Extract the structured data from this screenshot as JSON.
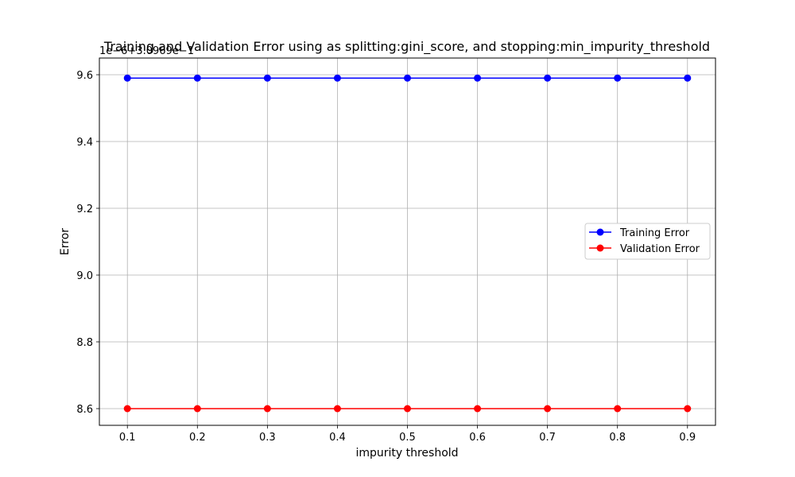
{
  "chart_data": {
    "type": "line",
    "title": "Training and Validation Error using as splitting:gini_score, and stopping:min_impurity_threshold",
    "xlabel": "impurity threshold",
    "ylabel": "Error",
    "offset_label": "1e−6+3.0969e−1",
    "x": [
      0.1,
      0.2,
      0.3,
      0.4,
      0.5,
      0.6,
      0.7,
      0.8,
      0.9
    ],
    "x_ticks": [
      "0.1",
      "0.2",
      "0.3",
      "0.4",
      "0.5",
      "0.6",
      "0.7",
      "0.8",
      "0.9"
    ],
    "y_ticks": [
      8.6,
      8.8,
      9.0,
      9.2,
      9.4,
      9.6
    ],
    "y_tick_labels": [
      "8.6",
      "8.8",
      "9.0",
      "9.2",
      "9.4",
      "9.6"
    ],
    "xlim": [
      0.06,
      0.94
    ],
    "ylim": [
      8.55,
      9.65
    ],
    "grid": true,
    "legend_position": "center-right",
    "series": [
      {
        "name": "Training Error",
        "color": "#0000ff",
        "values": [
          9.59,
          9.59,
          9.59,
          9.59,
          9.59,
          9.59,
          9.59,
          9.59,
          9.59
        ]
      },
      {
        "name": "Validation Error",
        "color": "#ff0000",
        "values": [
          8.6,
          8.6,
          8.6,
          8.6,
          8.6,
          8.6,
          8.6,
          8.6,
          8.6
        ]
      }
    ]
  }
}
